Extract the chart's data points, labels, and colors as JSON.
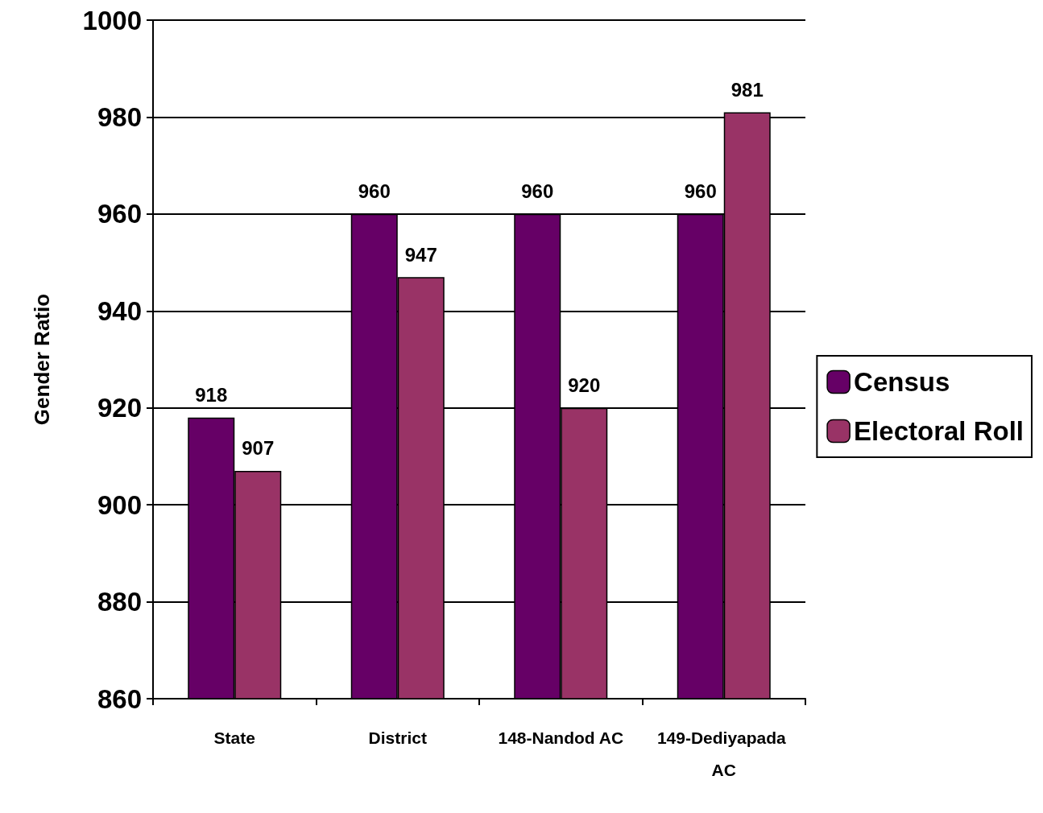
{
  "chart_data": {
    "type": "bar",
    "ylabel": "Gender Ratio",
    "categories": [
      "State",
      "District",
      "148-Nandod AC",
      "149-Dediyapada AC"
    ],
    "series": [
      {
        "name": "Census",
        "color": "#660066",
        "values": [
          918,
          960,
          960,
          960
        ]
      },
      {
        "name": "Electoral Roll",
        "color": "#993366",
        "values": [
          907,
          947,
          920,
          981
        ]
      }
    ],
    "ylim": [
      860,
      1000
    ],
    "yticks": [
      860,
      880,
      900,
      920,
      940,
      960,
      980,
      1000
    ],
    "grid": "y",
    "legend": "right",
    "data_labels": true
  }
}
